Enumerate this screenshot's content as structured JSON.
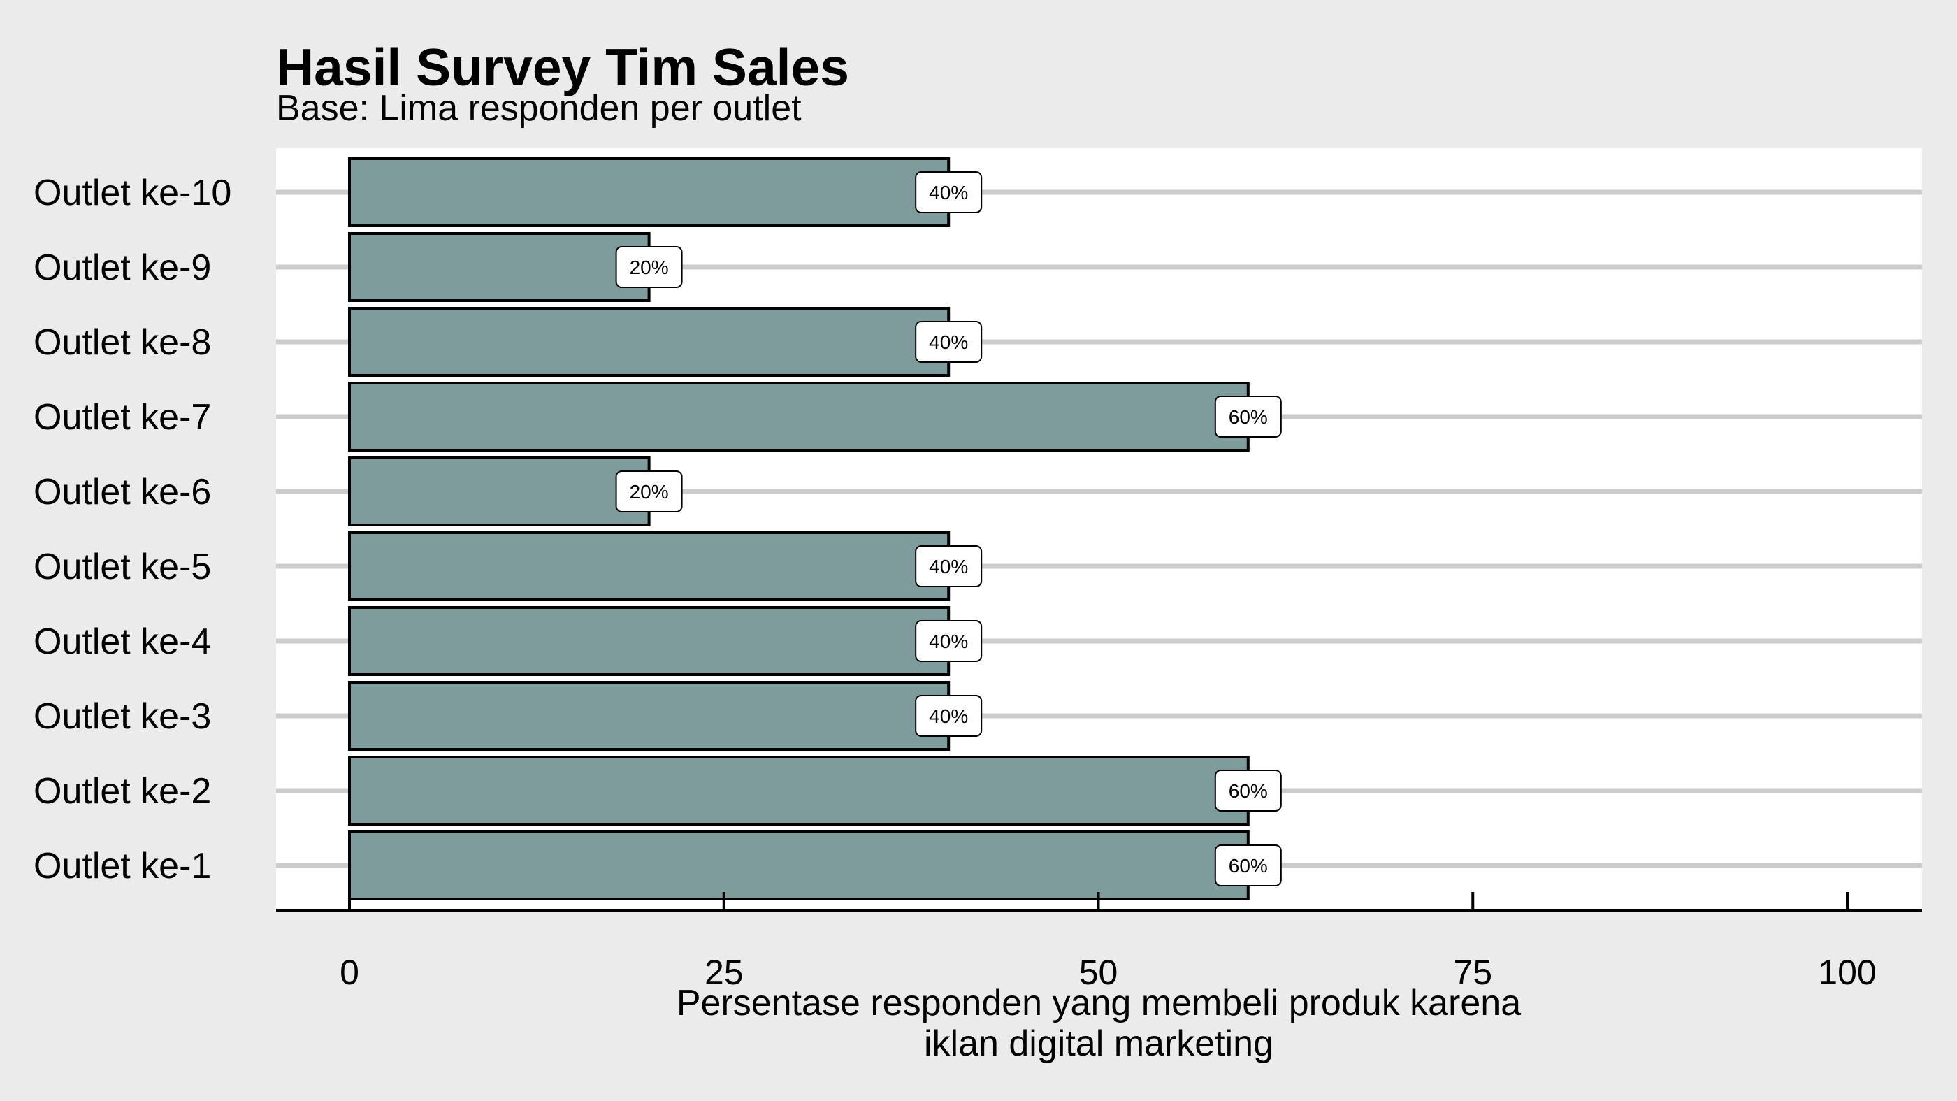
{
  "chart_data": {
    "type": "bar",
    "orientation": "horizontal",
    "title": "Hasil Survey Tim Sales",
    "subtitle": "Base: Lima responden per outlet",
    "categories": [
      "Outlet ke-10",
      "Outlet ke-9",
      "Outlet ke-8",
      "Outlet ke-7",
      "Outlet ke-6",
      "Outlet ke-5",
      "Outlet ke-4",
      "Outlet ke-3",
      "Outlet ke-2",
      "Outlet ke-1"
    ],
    "values": [
      40,
      20,
      40,
      60,
      20,
      40,
      40,
      40,
      60,
      60
    ],
    "data_labels": [
      "40%",
      "20%",
      "40%",
      "60%",
      "20%",
      "40%",
      "40%",
      "40%",
      "60%",
      "60%"
    ],
    "xlabel_lines": [
      "Persentase responden yang membeli produk karena",
      "iklan digital marketing"
    ],
    "ylabel": "",
    "xlim": [
      0,
      100
    ],
    "xticks": [
      0,
      25,
      50,
      75,
      100
    ],
    "xtick_labels": [
      "0",
      "25",
      "50",
      "75",
      "100"
    ],
    "grid": "horizontal",
    "legend": "none",
    "colors": {
      "background": "#ebebeb",
      "panel": "#ffffff",
      "bar_fill": "#7f9c9c",
      "bar_stroke": "#000000",
      "gridline": "#cccccc",
      "label_box": "#ffffff"
    }
  }
}
